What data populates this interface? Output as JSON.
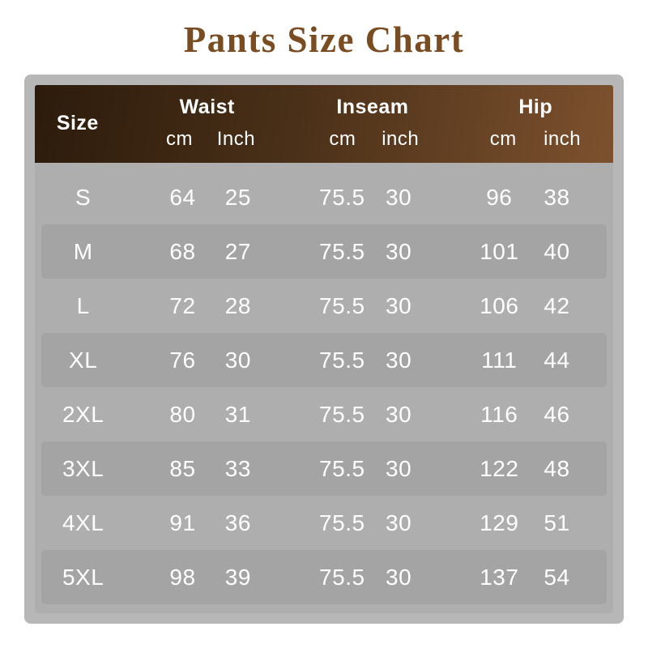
{
  "title": "Pants Size Chart",
  "colors": {
    "title_text": "#7a4c22",
    "header_gradient_left": "#2c1b0c",
    "header_gradient_right": "#7d512e",
    "panel_frame": "#b7b7b7",
    "panel_fill": "#aeaeae",
    "row_band": "#a4a4a4",
    "table_text": "#ffffff",
    "page_background": "#ffffff"
  },
  "table": {
    "size_header": "Size",
    "groups": [
      {
        "label": "Waist",
        "sub": [
          "cm",
          "Inch"
        ]
      },
      {
        "label": "Inseam",
        "sub": [
          "cm",
          "inch"
        ]
      },
      {
        "label": "Hip",
        "sub": [
          "cm",
          "inch"
        ]
      }
    ],
    "rows": [
      {
        "size": "S",
        "waist_cm": "64",
        "waist_inch": "25",
        "inseam_cm": "75.5",
        "inseam_inch": "30",
        "hip_cm": "96",
        "hip_inch": "38"
      },
      {
        "size": "M",
        "waist_cm": "68",
        "waist_inch": "27",
        "inseam_cm": "75.5",
        "inseam_inch": "30",
        "hip_cm": "101",
        "hip_inch": "40"
      },
      {
        "size": "L",
        "waist_cm": "72",
        "waist_inch": "28",
        "inseam_cm": "75.5",
        "inseam_inch": "30",
        "hip_cm": "106",
        "hip_inch": "42"
      },
      {
        "size": "XL",
        "waist_cm": "76",
        "waist_inch": "30",
        "inseam_cm": "75.5",
        "inseam_inch": "30",
        "hip_cm": "111",
        "hip_inch": "44"
      },
      {
        "size": "2XL",
        "waist_cm": "80",
        "waist_inch": "31",
        "inseam_cm": "75.5",
        "inseam_inch": "30",
        "hip_cm": "116",
        "hip_inch": "46"
      },
      {
        "size": "3XL",
        "waist_cm": "85",
        "waist_inch": "33",
        "inseam_cm": "75.5",
        "inseam_inch": "30",
        "hip_cm": "122",
        "hip_inch": "48"
      },
      {
        "size": "4XL",
        "waist_cm": "91",
        "waist_inch": "36",
        "inseam_cm": "75.5",
        "inseam_inch": "30",
        "hip_cm": "129",
        "hip_inch": "51"
      },
      {
        "size": "5XL",
        "waist_cm": "98",
        "waist_inch": "39",
        "inseam_cm": "75.5",
        "inseam_inch": "30",
        "hip_cm": "137",
        "hip_inch": "54"
      }
    ]
  },
  "chart_data": {
    "type": "table",
    "title": "Pants Size Chart",
    "columns": [
      "Size",
      "Waist cm",
      "Waist Inch",
      "Inseam cm",
      "Inseam inch",
      "Hip cm",
      "Hip inch"
    ],
    "rows": [
      [
        "S",
        64,
        25,
        75.5,
        30,
        96,
        38
      ],
      [
        "M",
        68,
        27,
        75.5,
        30,
        101,
        40
      ],
      [
        "L",
        72,
        28,
        75.5,
        30,
        106,
        42
      ],
      [
        "XL",
        76,
        30,
        75.5,
        30,
        111,
        44
      ],
      [
        "2XL",
        80,
        31,
        75.5,
        30,
        116,
        46
      ],
      [
        "3XL",
        85,
        33,
        75.5,
        30,
        122,
        48
      ],
      [
        "4XL",
        91,
        36,
        75.5,
        30,
        129,
        51
      ],
      [
        "5XL",
        98,
        39,
        75.5,
        30,
        137,
        54
      ]
    ]
  }
}
